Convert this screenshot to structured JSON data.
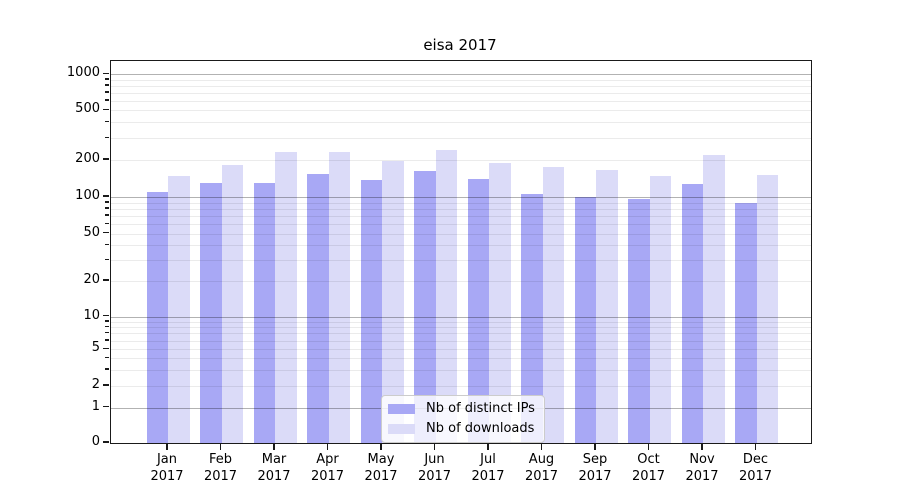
{
  "figure": {
    "title": "eisa 2017"
  },
  "chart_data": {
    "type": "bar",
    "title": "eisa 2017",
    "yscale": "symlog",
    "ylim": [
      0,
      1280
    ],
    "grid": true,
    "legend_position": "lower center",
    "categories": [
      "Jan 2017",
      "Feb 2017",
      "Mar 2017",
      "Apr 2017",
      "May 2017",
      "Jun 2017",
      "Jul 2017",
      "Aug 2017",
      "Sep 2017",
      "Oct 2017",
      "Nov 2017",
      "Dec 2017"
    ],
    "yticks": [
      0,
      1,
      2,
      5,
      10,
      20,
      50,
      100,
      200,
      500,
      1000
    ],
    "series": [
      {
        "name": "Nb of distinct IPs",
        "color": "#a8a8f5",
        "values": [
          110,
          131,
          129,
          155,
          137,
          163,
          141,
          106,
          100,
          96,
          127,
          90
        ]
      },
      {
        "name": "Nb of downloads",
        "color": "#dbdbf8",
        "values": [
          147,
          183,
          230,
          230,
          197,
          240,
          189,
          174,
          166,
          149,
          218,
          151
        ]
      }
    ]
  }
}
